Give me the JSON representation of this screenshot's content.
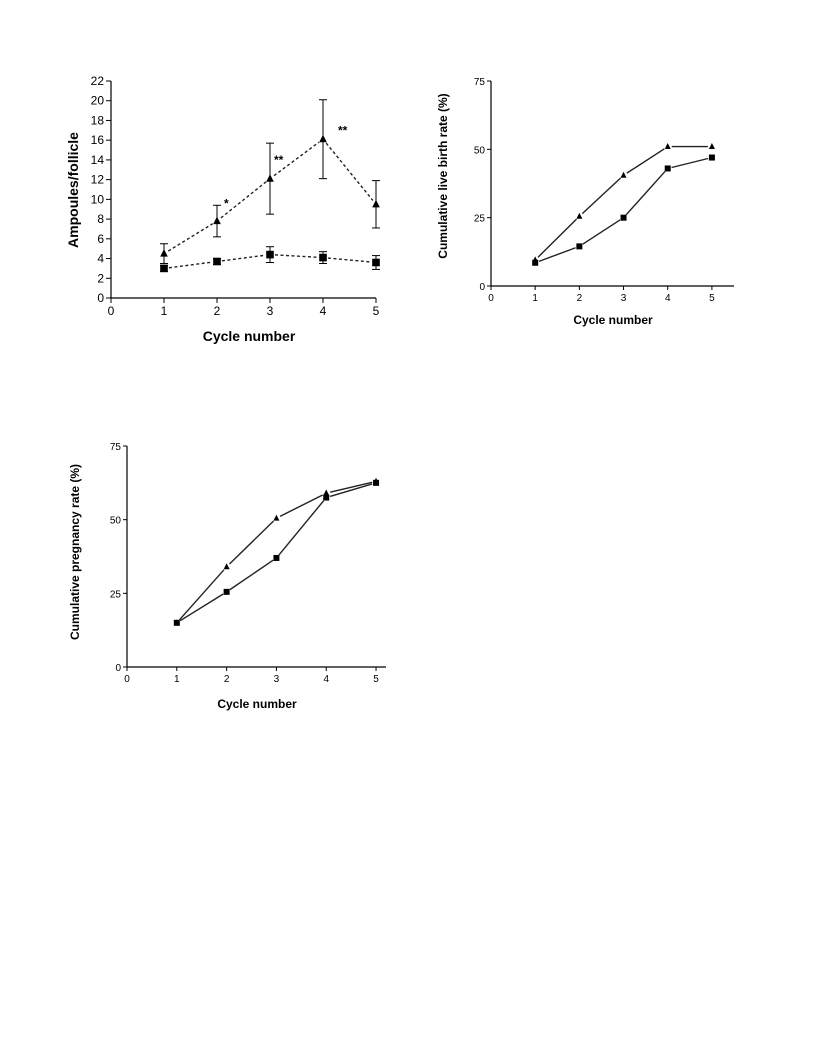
{
  "chart_data": [
    {
      "type": "line",
      "xlabel": "Cycle number",
      "ylabel": "Ampoules/follicle",
      "xlim": [
        0,
        5
      ],
      "ylim": [
        0,
        22
      ],
      "xticks": [
        0,
        1,
        2,
        3,
        4,
        5
      ],
      "yticks": [
        0,
        2,
        4,
        6,
        8,
        10,
        12,
        14,
        16,
        18,
        20,
        22
      ],
      "x": [
        1,
        2,
        3,
        4,
        5
      ],
      "series": [
        {
          "marker": "triangle",
          "line_style": "dashed",
          "values": [
            4.5,
            7.8,
            12.1,
            16.1,
            9.5
          ],
          "error": [
            1.0,
            1.6,
            3.6,
            4.0,
            2.4
          ]
        },
        {
          "marker": "square",
          "line_style": "dashed",
          "values": [
            3.0,
            3.7,
            4.4,
            4.1,
            3.6
          ],
          "error": [
            0.3,
            0.3,
            0.8,
            0.6,
            0.7
          ]
        }
      ],
      "annotations": [
        {
          "text": "*",
          "x": 2,
          "y": 9.6
        },
        {
          "text": "**",
          "x": 3,
          "y": 14.0
        },
        {
          "text": "**",
          "x": 4,
          "y": 17.0
        }
      ],
      "grid": false
    },
    {
      "type": "line",
      "xlabel": "Cycle number",
      "ylabel": "Cumulative live birth rate (%)",
      "xlim": [
        0,
        5.5
      ],
      "ylim": [
        0,
        75
      ],
      "xticks": [
        0,
        1,
        2,
        3,
        4,
        5
      ],
      "yticks": [
        0,
        25,
        50,
        75
      ],
      "x": [
        1,
        2,
        3,
        4,
        5
      ],
      "series": [
        {
          "marker": "triangle",
          "line_style": "solid",
          "values": [
            9.5,
            25.5,
            40.5,
            51,
            51
          ]
        },
        {
          "marker": "square",
          "line_style": "solid",
          "values": [
            8.5,
            14.5,
            25,
            43,
            47
          ]
        }
      ],
      "grid": false
    },
    {
      "type": "line",
      "xlabel": "Cycle number",
      "ylabel": "Cumulative pregnancy rate (%)",
      "xlim": [
        0,
        5.2
      ],
      "ylim": [
        0,
        75
      ],
      "xticks": [
        0,
        1,
        2,
        3,
        4,
        5
      ],
      "yticks": [
        0,
        25,
        50,
        75
      ],
      "x": [
        1,
        2,
        3,
        4,
        5
      ],
      "series": [
        {
          "marker": "triangle",
          "line_style": "solid",
          "values": [
            15,
            34,
            50.5,
            59,
            63
          ]
        },
        {
          "marker": "square",
          "line_style": "solid",
          "values": [
            15,
            25.5,
            37,
            57.5,
            62.5
          ]
        }
      ],
      "grid": false
    }
  ]
}
